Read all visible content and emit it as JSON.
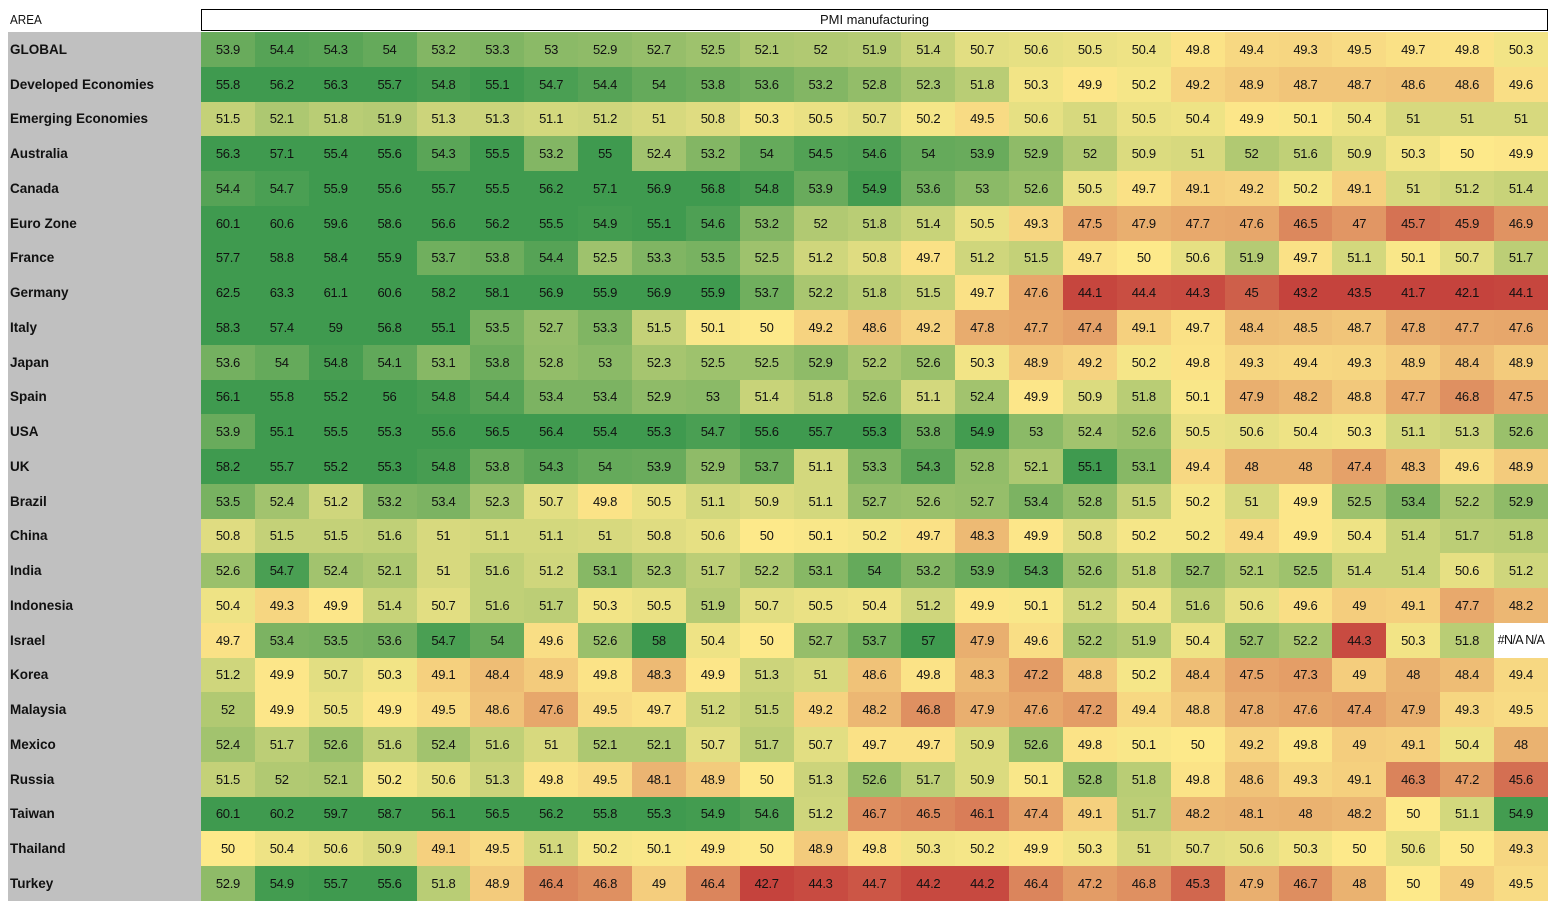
{
  "header": {
    "area_label": "AREA",
    "metric_label": "PMI manufacturing"
  },
  "chart_data": {
    "type": "heatmap",
    "title": "PMI manufacturing",
    "row_header": "AREA",
    "color_scale": {
      "low": "#c5433d",
      "mid": "#fde98a",
      "high": "#3f9a4f",
      "na": "#ffffff"
    },
    "rows": [
      {
        "name": "GLOBAL",
        "values": [
          "53.9",
          "54.4",
          "54.3",
          "54",
          "53.2",
          "53.3",
          "53",
          "52.9",
          "52.7",
          "52.5",
          "52.1",
          "52",
          "51.9",
          "51.4",
          "50.7",
          "50.6",
          "50.5",
          "50.4",
          "49.8",
          "49.4",
          "49.3",
          "49.5",
          "49.7",
          "49.8",
          "50.3"
        ]
      },
      {
        "name": "Developed Economies",
        "values": [
          "55.8",
          "56.2",
          "56.3",
          "55.7",
          "54.8",
          "55.1",
          "54.7",
          "54.4",
          "54",
          "53.8",
          "53.6",
          "53.2",
          "52.8",
          "52.3",
          "51.8",
          "50.3",
          "49.9",
          "50.2",
          "49.2",
          "48.9",
          "48.7",
          "48.7",
          "48.6",
          "48.6",
          "49.6"
        ]
      },
      {
        "name": "Emerging Economies",
        "values": [
          "51.5",
          "52.1",
          "51.8",
          "51.9",
          "51.3",
          "51.3",
          "51.1",
          "51.2",
          "51",
          "50.8",
          "50.3",
          "50.5",
          "50.7",
          "50.2",
          "49.5",
          "50.6",
          "51",
          "50.5",
          "50.4",
          "49.9",
          "50.1",
          "50.4",
          "51",
          "51",
          "51"
        ]
      },
      {
        "name": "Australia",
        "values": [
          "56.3",
          "57.1",
          "55.4",
          "55.6",
          "54.3",
          "55.5",
          "53.2",
          "55",
          "52.4",
          "53.2",
          "54",
          "54.5",
          "54.6",
          "54",
          "53.9",
          "52.9",
          "52",
          "50.9",
          "51",
          "52",
          "51.6",
          "50.9",
          "50.3",
          "50",
          "49.9"
        ]
      },
      {
        "name": "Canada",
        "values": [
          "54.4",
          "54.7",
          "55.9",
          "55.6",
          "55.7",
          "55.5",
          "56.2",
          "57.1",
          "56.9",
          "56.8",
          "54.8",
          "53.9",
          "54.9",
          "53.6",
          "53",
          "52.6",
          "50.5",
          "49.7",
          "49.1",
          "49.2",
          "50.2",
          "49.1",
          "51",
          "51.2",
          "51.4"
        ]
      },
      {
        "name": "Euro Zone",
        "values": [
          "60.1",
          "60.6",
          "59.6",
          "58.6",
          "56.6",
          "56.2",
          "55.5",
          "54.9",
          "55.1",
          "54.6",
          "53.2",
          "52",
          "51.8",
          "51.4",
          "50.5",
          "49.3",
          "47.5",
          "47.9",
          "47.7",
          "47.6",
          "46.5",
          "47",
          "45.7",
          "45.9",
          "46.9"
        ]
      },
      {
        "name": "France",
        "values": [
          "57.7",
          "58.8",
          "58.4",
          "55.9",
          "53.7",
          "53.8",
          "54.4",
          "52.5",
          "53.3",
          "53.5",
          "52.5",
          "51.2",
          "50.8",
          "49.7",
          "51.2",
          "51.5",
          "49.7",
          "50",
          "50.6",
          "51.9",
          "49.7",
          "51.1",
          "50.1",
          "50.7",
          "51.7"
        ]
      },
      {
        "name": "Germany",
        "values": [
          "62.5",
          "63.3",
          "61.1",
          "60.6",
          "58.2",
          "58.1",
          "56.9",
          "55.9",
          "56.9",
          "55.9",
          "53.7",
          "52.2",
          "51.8",
          "51.5",
          "49.7",
          "47.6",
          "44.1",
          "44.4",
          "44.3",
          "45",
          "43.2",
          "43.5",
          "41.7",
          "42.1",
          "44.1"
        ]
      },
      {
        "name": "Italy",
        "values": [
          "58.3",
          "57.4",
          "59",
          "56.8",
          "55.1",
          "53.5",
          "52.7",
          "53.3",
          "51.5",
          "50.1",
          "50",
          "49.2",
          "48.6",
          "49.2",
          "47.8",
          "47.7",
          "47.4",
          "49.1",
          "49.7",
          "48.4",
          "48.5",
          "48.7",
          "47.8",
          "47.7",
          "47.6"
        ]
      },
      {
        "name": "Japan",
        "values": [
          "53.6",
          "54",
          "54.8",
          "54.1",
          "53.1",
          "53.8",
          "52.8",
          "53",
          "52.3",
          "52.5",
          "52.5",
          "52.9",
          "52.2",
          "52.6",
          "50.3",
          "48.9",
          "49.2",
          "50.2",
          "49.8",
          "49.3",
          "49.4",
          "49.3",
          "48.9",
          "48.4",
          "48.9"
        ]
      },
      {
        "name": "Spain",
        "values": [
          "56.1",
          "55.8",
          "55.2",
          "56",
          "54.8",
          "54.4",
          "53.4",
          "53.4",
          "52.9",
          "53",
          "51.4",
          "51.8",
          "52.6",
          "51.1",
          "52.4",
          "49.9",
          "50.9",
          "51.8",
          "50.1",
          "47.9",
          "48.2",
          "48.8",
          "47.7",
          "46.8",
          "47.5"
        ]
      },
      {
        "name": "USA",
        "values": [
          "53.9",
          "55.1",
          "55.5",
          "55.3",
          "55.6",
          "56.5",
          "56.4",
          "55.4",
          "55.3",
          "54.7",
          "55.6",
          "55.7",
          "55.3",
          "53.8",
          "54.9",
          "53",
          "52.4",
          "52.6",
          "50.5",
          "50.6",
          "50.4",
          "50.3",
          "51.1",
          "51.3",
          "52.6"
        ]
      },
      {
        "name": "UK",
        "values": [
          "58.2",
          "55.7",
          "55.2",
          "55.3",
          "54.8",
          "53.8",
          "54.3",
          "54",
          "53.9",
          "52.9",
          "53.7",
          "51.1",
          "53.3",
          "54.3",
          "52.8",
          "52.1",
          "55.1",
          "53.1",
          "49.4",
          "48",
          "48",
          "47.4",
          "48.3",
          "49.6",
          "48.9"
        ]
      },
      {
        "name": "Brazil",
        "values": [
          "53.5",
          "52.4",
          "51.2",
          "53.2",
          "53.4",
          "52.3",
          "50.7",
          "49.8",
          "50.5",
          "51.1",
          "50.9",
          "51.1",
          "52.7",
          "52.6",
          "52.7",
          "53.4",
          "52.8",
          "51.5",
          "50.2",
          "51",
          "49.9",
          "52.5",
          "53.4",
          "52.2",
          "52.9"
        ]
      },
      {
        "name": "China",
        "values": [
          "50.8",
          "51.5",
          "51.5",
          "51.6",
          "51",
          "51.1",
          "51.1",
          "51",
          "50.8",
          "50.6",
          "50",
          "50.1",
          "50.2",
          "49.7",
          "48.3",
          "49.9",
          "50.8",
          "50.2",
          "50.2",
          "49.4",
          "49.9",
          "50.4",
          "51.4",
          "51.7",
          "51.8"
        ]
      },
      {
        "name": "India",
        "values": [
          "52.6",
          "54.7",
          "52.4",
          "52.1",
          "51",
          "51.6",
          "51.2",
          "53.1",
          "52.3",
          "51.7",
          "52.2",
          "53.1",
          "54",
          "53.2",
          "53.9",
          "54.3",
          "52.6",
          "51.8",
          "52.7",
          "52.1",
          "52.5",
          "51.4",
          "51.4",
          "50.6",
          "51.2"
        ]
      },
      {
        "name": "Indonesia",
        "values": [
          "50.4",
          "49.3",
          "49.9",
          "51.4",
          "50.7",
          "51.6",
          "51.7",
          "50.3",
          "50.5",
          "51.9",
          "50.7",
          "50.5",
          "50.4",
          "51.2",
          "49.9",
          "50.1",
          "51.2",
          "50.4",
          "51.6",
          "50.6",
          "49.6",
          "49",
          "49.1",
          "47.7",
          "48.2"
        ]
      },
      {
        "name": "Israel",
        "values": [
          "49.7",
          "53.4",
          "53.5",
          "53.6",
          "54.7",
          "54",
          "49.6",
          "52.6",
          "58",
          "50.4",
          "50",
          "52.7",
          "53.7",
          "57",
          "47.9",
          "49.6",
          "52.2",
          "51.9",
          "50.4",
          "52.7",
          "52.2",
          "44.3",
          "50.3",
          "51.8",
          "#N/A N/A"
        ]
      },
      {
        "name": "Korea",
        "values": [
          "51.2",
          "49.9",
          "50.7",
          "50.3",
          "49.1",
          "48.4",
          "48.9",
          "49.8",
          "48.3",
          "49.9",
          "51.3",
          "51",
          "48.6",
          "49.8",
          "48.3",
          "47.2",
          "48.8",
          "50.2",
          "48.4",
          "47.5",
          "47.3",
          "49",
          "48",
          "48.4",
          "49.4"
        ]
      },
      {
        "name": "Malaysia",
        "values": [
          "52",
          "49.9",
          "50.5",
          "49.9",
          "49.5",
          "48.6",
          "47.6",
          "49.5",
          "49.7",
          "51.2",
          "51.5",
          "49.2",
          "48.2",
          "46.8",
          "47.9",
          "47.6",
          "47.2",
          "49.4",
          "48.8",
          "47.8",
          "47.6",
          "47.4",
          "47.9",
          "49.3",
          "49.5"
        ]
      },
      {
        "name": "Mexico",
        "values": [
          "52.4",
          "51.7",
          "52.6",
          "51.6",
          "52.4",
          "51.6",
          "51",
          "52.1",
          "52.1",
          "50.7",
          "51.7",
          "50.7",
          "49.7",
          "49.7",
          "50.9",
          "52.6",
          "49.8",
          "50.1",
          "50",
          "49.2",
          "49.8",
          "49",
          "49.1",
          "50.4",
          "48"
        ]
      },
      {
        "name": "Russia",
        "values": [
          "51.5",
          "52",
          "52.1",
          "50.2",
          "50.6",
          "51.3",
          "49.8",
          "49.5",
          "48.1",
          "48.9",
          "50",
          "51.3",
          "52.6",
          "51.7",
          "50.9",
          "50.1",
          "52.8",
          "51.8",
          "49.8",
          "48.6",
          "49.3",
          "49.1",
          "46.3",
          "47.2",
          "45.6"
        ]
      },
      {
        "name": "Taiwan",
        "values": [
          "60.1",
          "60.2",
          "59.7",
          "58.7",
          "56.1",
          "56.5",
          "56.2",
          "55.8",
          "55.3",
          "54.9",
          "54.6",
          "51.2",
          "46.7",
          "46.5",
          "46.1",
          "47.4",
          "49.1",
          "51.7",
          "48.2",
          "48.1",
          "48",
          "48.2",
          "50",
          "51.1",
          "54.9"
        ]
      },
      {
        "name": "Thailand",
        "values": [
          "50",
          "50.4",
          "50.6",
          "50.9",
          "49.1",
          "49.5",
          "51.1",
          "50.2",
          "50.1",
          "49.9",
          "50",
          "48.9",
          "49.8",
          "50.3",
          "50.2",
          "49.9",
          "50.3",
          "51",
          "50.7",
          "50.6",
          "50.3",
          "50",
          "50.6",
          "50",
          "49.3"
        ]
      },
      {
        "name": "Turkey",
        "values": [
          "52.9",
          "54.9",
          "55.7",
          "55.6",
          "51.8",
          "48.9",
          "46.4",
          "46.8",
          "49",
          "46.4",
          "42.7",
          "44.3",
          "44.7",
          "44.2",
          "44.2",
          "46.4",
          "47.2",
          "46.8",
          "45.3",
          "47.9",
          "46.7",
          "48",
          "50",
          "49",
          "49.5"
        ]
      }
    ]
  }
}
